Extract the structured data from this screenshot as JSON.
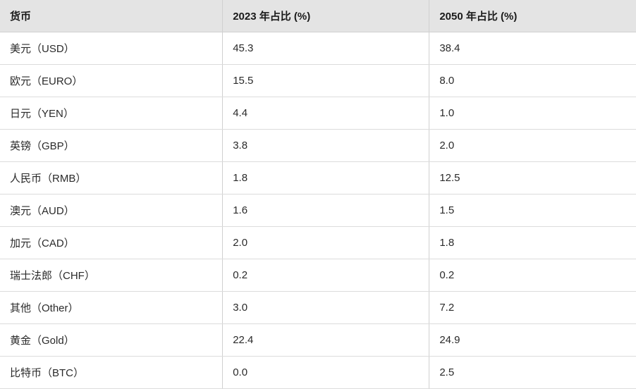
{
  "table": {
    "type": "table",
    "columns": [
      {
        "label": "货币",
        "width_pct": 35,
        "align": "left"
      },
      {
        "label": "2023 年占比 (%)",
        "width_pct": 32.5,
        "align": "left"
      },
      {
        "label": "2050 年占比 (%)",
        "width_pct": 32.5,
        "align": "left"
      }
    ],
    "rows": [
      [
        "美元（USD）",
        "45.3",
        "38.4"
      ],
      [
        "欧元（EURO）",
        "15.5",
        "8.0"
      ],
      [
        "日元（YEN）",
        "4.4",
        "1.0"
      ],
      [
        "英镑（GBP）",
        "3.8",
        "2.0"
      ],
      [
        "人民币（RMB）",
        "1.8",
        "12.5"
      ],
      [
        "澳元（AUD）",
        "1.6",
        "1.5"
      ],
      [
        "加元（CAD）",
        "2.0",
        "1.8"
      ],
      [
        "瑞士法郎（CHF）",
        "0.2",
        "0.2"
      ],
      [
        "其他（Other）",
        "3.0",
        "7.2"
      ],
      [
        "黄金（Gold）",
        "22.4",
        "24.9"
      ],
      [
        "比特币（BTC）",
        "0.0",
        "2.5"
      ]
    ],
    "header_bg": "#e4e4e4",
    "row_bg": "#ffffff",
    "border_color": "#d0d0d0",
    "row_border_color": "#dcdcdc",
    "text_color": "#2a2a2a",
    "header_text_color": "#1a1a1a",
    "header_fontsize": 15,
    "cell_fontsize": 15,
    "header_fontweight": 700
  }
}
